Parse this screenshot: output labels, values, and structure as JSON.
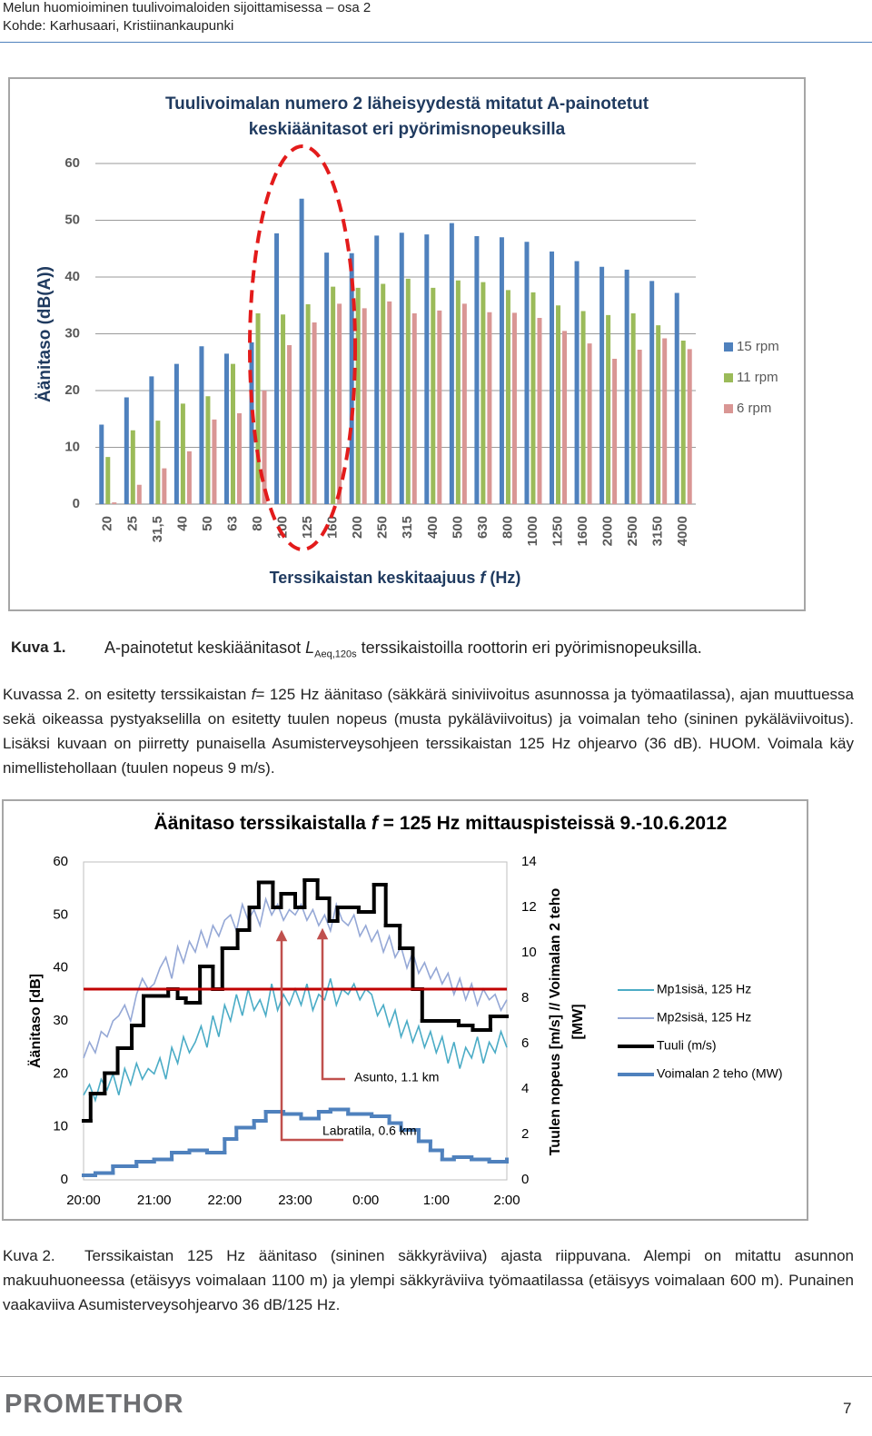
{
  "header": {
    "line1": "Melun huomioiminen tuulivoimaloiden sijoittamisessa – osa 2",
    "line2": "Kohde: Karhusaari, Kristiinankaupunki"
  },
  "chart_data": [
    {
      "type": "bar",
      "title": [
        "Tuulivoimalan numero 2 läheisyydestä mitatut A-painotetut",
        "keskiäänitasot eri pyörimisnopeuksilla"
      ],
      "x_label": [
        "Terssikaistan keskitaajuus ",
        "f",
        " (Hz)"
      ],
      "y_label": "Äänitaso (dB(A))",
      "categories": [
        "20",
        "25",
        "31,5",
        "40",
        "50",
        "63",
        "80",
        "100",
        "125",
        "160",
        "200",
        "250",
        "315",
        "400",
        "500",
        "630",
        "800",
        "1000",
        "1250",
        "1600",
        "2000",
        "2500",
        "3150",
        "4000"
      ],
      "series": [
        {
          "name": "15 rpm",
          "color": "#4f81bd",
          "values": [
            14,
            18.8,
            22.5,
            24.7,
            27.8,
            26.5,
            28.5,
            47.7,
            53.8,
            44.3,
            44.2,
            47.3,
            47.8,
            47.5,
            49.5,
            47.2,
            47,
            46.2,
            44.5,
            42.8,
            41.8,
            41.3,
            39.3,
            37.2
          ]
        },
        {
          "name": "11 rpm",
          "color": "#9bbb59",
          "values": [
            8.3,
            13,
            14.7,
            17.7,
            19,
            24.7,
            33.6,
            33.4,
            35.2,
            38.3,
            38.1,
            38.8,
            39.7,
            38.1,
            39.4,
            39.1,
            37.7,
            37.3,
            35,
            34,
            33.3,
            33.6,
            31.5,
            28.8
          ]
        },
        {
          "name": "6 rpm",
          "color": "#d99694",
          "values": [
            0.3,
            3.4,
            6.3,
            9.3,
            14.9,
            16,
            20,
            28,
            32,
            35.3,
            34.5,
            35.7,
            33.6,
            34.1,
            35.3,
            33.8,
            33.7,
            32.8,
            30.5,
            28.3,
            25.6,
            27.2,
            29.2,
            27.3
          ]
        }
      ],
      "ylim": [
        0,
        60
      ],
      "yticks": [
        0,
        10,
        20,
        30,
        40,
        50,
        60
      ],
      "grid": true,
      "legend": "right"
    },
    {
      "type": "line",
      "title": [
        "Äänitaso terssikaistalla ",
        "f",
        " = 125 Hz mittauspisteissä 9.-10.6.2012"
      ],
      "y_label": "Äänitaso [dB]",
      "y2_label": [
        "Tuulen nopeus [m/s] // Voimalan 2 teho",
        "[MW]"
      ],
      "xlim": [
        0,
        360
      ],
      "xticks": [
        {
          "value": 0,
          "label": "20:00"
        },
        {
          "value": 60,
          "label": "21:00"
        },
        {
          "value": 120,
          "label": "22:00"
        },
        {
          "value": 180,
          "label": "23:00"
        },
        {
          "value": 240,
          "label": "0:00"
        },
        {
          "value": 300,
          "label": "1:00"
        },
        {
          "value": 360,
          "label": "2:00"
        }
      ],
      "ylim": [
        0,
        60
      ],
      "yticks": [
        0,
        10,
        20,
        30,
        40,
        50,
        60
      ],
      "y2lim": [
        0,
        14
      ],
      "y2ticks": [
        0,
        2,
        4,
        6,
        8,
        10,
        12,
        14
      ],
      "grid": false,
      "legend": "right",
      "series": [
        {
          "name": "Mp1sisä, 125 Hz",
          "color": "#4bacc6",
          "x": [
            0,
            5,
            10,
            15,
            20,
            25,
            30,
            35,
            40,
            45,
            50,
            55,
            60,
            65,
            70,
            75,
            80,
            85,
            90,
            95,
            100,
            105,
            110,
            115,
            120,
            125,
            130,
            135,
            140,
            145,
            150,
            155,
            160,
            165,
            170,
            175,
            180,
            185,
            190,
            195,
            200,
            205,
            210,
            215,
            220,
            225,
            230,
            235,
            240,
            245,
            250,
            255,
            260,
            265,
            270,
            275,
            280,
            285,
            290,
            295,
            300,
            305,
            310,
            315,
            320,
            325,
            330,
            335,
            340,
            345,
            350,
            355,
            360
          ],
          "values": [
            16,
            18,
            15,
            19,
            17,
            20,
            16,
            21,
            18,
            22,
            19,
            21,
            20,
            23,
            19,
            25,
            22,
            27,
            24,
            26,
            29,
            25,
            31,
            27,
            33,
            30,
            35,
            31,
            36,
            32,
            34,
            31,
            37,
            32,
            35,
            33,
            36,
            33,
            37,
            32,
            35,
            34,
            38,
            33,
            36,
            35,
            37,
            34,
            36,
            35,
            31,
            33,
            29,
            32,
            27,
            30,
            26,
            29,
            25,
            28,
            24,
            27,
            22,
            26,
            21,
            25,
            23,
            27,
            22,
            26,
            24,
            28,
            25
          ]
        },
        {
          "name": "Mp2sisä, 125 Hz",
          "color": "#95a8d6",
          "x": [
            0,
            5,
            10,
            15,
            20,
            25,
            30,
            35,
            40,
            45,
            50,
            55,
            60,
            65,
            70,
            75,
            80,
            85,
            90,
            95,
            100,
            105,
            110,
            115,
            120,
            125,
            130,
            135,
            140,
            145,
            150,
            155,
            160,
            165,
            170,
            175,
            180,
            185,
            190,
            195,
            200,
            205,
            210,
            215,
            220,
            225,
            230,
            235,
            240,
            245,
            250,
            255,
            260,
            265,
            270,
            275,
            280,
            285,
            290,
            295,
            300,
            305,
            310,
            315,
            320,
            325,
            330,
            335,
            340,
            345,
            350,
            355,
            360
          ],
          "values": [
            23,
            26,
            24,
            28,
            27,
            30,
            31,
            33,
            30,
            35,
            38,
            36,
            37,
            40,
            42,
            38,
            44,
            41,
            45,
            43,
            47,
            44,
            48,
            46,
            49,
            50,
            47,
            52,
            49,
            51,
            48,
            53,
            50,
            52,
            49,
            51,
            50,
            52,
            49,
            51,
            48,
            50,
            47,
            52,
            49,
            48,
            50,
            46,
            48,
            45,
            47,
            43,
            46,
            42,
            44,
            40,
            43,
            39,
            41,
            38,
            40,
            37,
            39,
            35,
            38,
            34,
            37,
            33,
            36,
            34,
            35,
            32,
            34
          ]
        },
        {
          "name": "Tuuli (m/s)",
          "color": "#000000",
          "axis": "y2",
          "step": true,
          "x": [
            0,
            6,
            18,
            29,
            41,
            51,
            72,
            80,
            87,
            99,
            110,
            118,
            131,
            141,
            149,
            161,
            168,
            180,
            188,
            199,
            209,
            216,
            234,
            247,
            257,
            269,
            280,
            288,
            319,
            331,
            346,
            360
          ],
          "values": [
            2.6,
            3.8,
            4.7,
            5.8,
            6.8,
            8.1,
            8.4,
            8.0,
            7.8,
            9.4,
            8.4,
            10.2,
            11.0,
            12.0,
            13.1,
            12.0,
            12.6,
            12.0,
            13.2,
            12.4,
            11.4,
            12.0,
            11.8,
            13.0,
            11.2,
            10.2,
            8.4,
            7.0,
            6.8,
            6.6,
            7.2,
            7.2
          ]
        },
        {
          "name": "Voimalan 2 teho (MW)",
          "color": "#4f81bd",
          "axis": "y2",
          "step": true,
          "x": [
            0,
            10,
            25,
            45,
            60,
            75,
            90,
            105,
            120,
            130,
            145,
            155,
            170,
            185,
            200,
            210,
            225,
            245,
            260,
            270,
            285,
            295,
            305,
            315,
            330,
            345,
            360
          ],
          "values": [
            0.2,
            0.3,
            0.6,
            0.8,
            0.9,
            1.2,
            1.3,
            1.2,
            1.8,
            2.3,
            2.6,
            3.0,
            2.9,
            2.7,
            3.0,
            3.1,
            2.9,
            2.8,
            2.5,
            2.2,
            1.7,
            1.3,
            0.9,
            1.0,
            0.9,
            0.8,
            0.9
          ]
        }
      ],
      "reference_line": {
        "value": 36,
        "color": "#c00000"
      },
      "annotations": [
        "Asunto, 1.1 km",
        "Labratila, 0.6 km"
      ]
    }
  ],
  "figure1_caption": {
    "label": "Kuva 1.",
    "text_before": "A-painotetut keskiäänitasot ",
    "symbol": "L",
    "subscript": "Aeq,120s",
    "text_after": " terssikaistoilla roottorin eri pyörimisnopeuksilla."
  },
  "paragraph": {
    "parts": [
      "Kuvassa 2. on esitetty terssikaistan ",
      "f",
      "= 125 Hz äänitaso (säkkärä siniviivoitus asunnossa ja työmaatilassa), ajan muuttuessa sekä oikeassa pystyakselilla on esitetty tuulen nopeus (musta pykäläviivoitus) ja voimalan teho (sininen pykäläviivoitus). Lisäksi kuvaan on piirretty punaisella Asumisterveysohjeen terssikaistan 125 Hz ohjearvo (36 dB). HUOM. Voimala käy nimellistehollaan (tuulen nopeus 9 m/s)."
    ]
  },
  "figure2_caption": {
    "label": "Kuva 2.",
    "text": "Terssikaistan 125 Hz äänitaso (sininen säkkyräviiva) ajasta riippuvana. Alempi on mitattu asunnon makuuhuoneessa (etäisyys voimalaan 1100 m) ja ylempi säkkyräviiva työmaatilassa (etäisyys voimalaan 600 m). Punainen vaakaviiva Asumisterveysohjearvo 36 dB/125 Hz."
  },
  "footer": {
    "logo": "PROMETHOR",
    "page": 7
  }
}
